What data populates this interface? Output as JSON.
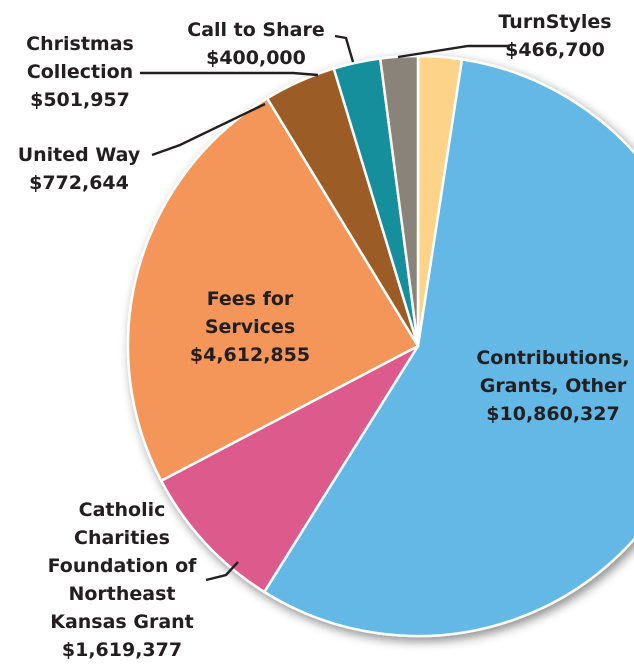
{
  "chart_data": {
    "type": "pie",
    "title": "",
    "slices": [
      {
        "name": "TurnStyles",
        "value": 466700,
        "value_label": "$466,700",
        "color": "#fcd389"
      },
      {
        "name": "Contributions, Grants, Other",
        "value": 10860327,
        "value_label": "$10,860,327",
        "color": "#63b8e6"
      },
      {
        "name": "Catholic Charities Foundation of Northeast Kansas Grant",
        "value": 1619377,
        "value_label": "$1,619,377",
        "color": "#dc5a8c"
      },
      {
        "name": "Fees for Services",
        "value": 4612855,
        "value_label": "$4,612,855",
        "color": "#f4955a"
      },
      {
        "name": "United Way",
        "value": 772644,
        "value_label": "$772,644",
        "color": "#9b5b27"
      },
      {
        "name": "Christmas Collection",
        "value": 501957,
        "value_label": "$501,957",
        "color": "#128f9c"
      },
      {
        "name": "Call to Share",
        "value": 400000,
        "value_label": "$400,000",
        "color": "#8a8379"
      }
    ],
    "start_position": "top (12 o'clock), clockwise"
  },
  "labels": {
    "turnstyles": {
      "lines": [
        "TurnStyles",
        "$466,700"
      ]
    },
    "contributions": {
      "lines": [
        "Contributions,",
        "Grants, Other",
        "$10,860,327"
      ]
    },
    "catholic": {
      "lines": [
        "Catholic",
        "Charities",
        "Foundation of",
        "Northeast",
        "Kansas Grant",
        "$1,619,377"
      ]
    },
    "fees": {
      "lines": [
        "Fees for",
        "Services",
        "$4,612,855"
      ]
    },
    "united_way": {
      "lines": [
        "United Way",
        "$772,644"
      ]
    },
    "christmas": {
      "lines": [
        "Christmas",
        "Collection",
        "$501,957"
      ]
    },
    "call_to_share": {
      "lines": [
        "Call to Share",
        "$400,000"
      ]
    }
  }
}
